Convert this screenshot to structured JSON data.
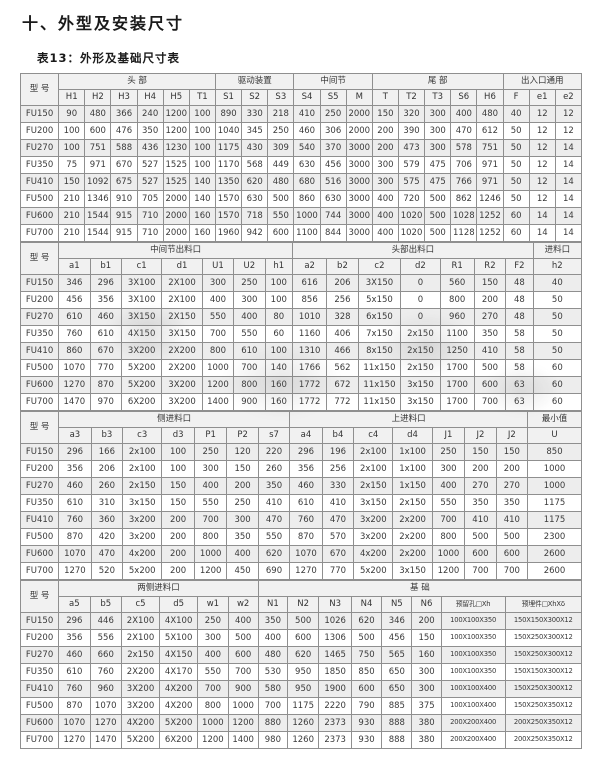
{
  "page_title": "十、外型及安装尺寸",
  "table_title": "表13：外形及基础尺寸表",
  "model_header": "型 号",
  "colors": {
    "border": "#8f8f8f",
    "header_bg": "#f1f1f1",
    "alt_row_bg": "#ededed",
    "text": "#3a3a3a",
    "watermark": "#6e6e6e"
  },
  "sections": [
    {
      "groups": [
        {
          "label": "头    部",
          "span": 6
        },
        {
          "label": "驱动装置",
          "span": 3
        },
        {
          "label": "中间节",
          "span": 3
        },
        {
          "label": "尾  部",
          "span": 5
        },
        {
          "label": "出入口通用",
          "span": 3
        }
      ],
      "columns": [
        "H1",
        "H2",
        "H3",
        "H4",
        "H5",
        "T1",
        "S1",
        "S2",
        "S3",
        "S4",
        "S5",
        "M",
        "T",
        "T2",
        "T3",
        "S6",
        "H6",
        "F",
        "e1",
        "e2"
      ],
      "rows": [
        {
          "model": "FU150",
          "values": [
            "90",
            "480",
            "366",
            "240",
            "1200",
            "100",
            "890",
            "330",
            "218",
            "410",
            "250",
            "2000",
            "150",
            "320",
            "300",
            "400",
            "480",
            "40",
            "12",
            "12"
          ]
        },
        {
          "model": "FU200",
          "values": [
            "100",
            "600",
            "476",
            "350",
            "1200",
            "100",
            "1040",
            "345",
            "250",
            "460",
            "306",
            "2000",
            "200",
            "390",
            "300",
            "470",
            "612",
            "50",
            "12",
            "12"
          ]
        },
        {
          "model": "FU270",
          "values": [
            "100",
            "751",
            "588",
            "436",
            "1230",
            "100",
            "1175",
            "430",
            "309",
            "540",
            "370",
            "3000",
            "200",
            "473",
            "300",
            "578",
            "751",
            "50",
            "12",
            "14"
          ]
        },
        {
          "model": "FU350",
          "values": [
            "75",
            "971",
            "670",
            "527",
            "1525",
            "100",
            "1170",
            "568",
            "449",
            "630",
            "456",
            "3000",
            "300",
            "579",
            "475",
            "706",
            "971",
            "50",
            "12",
            "14"
          ]
        },
        {
          "model": "FU410",
          "values": [
            "150",
            "1092",
            "675",
            "527",
            "1525",
            "140",
            "1350",
            "620",
            "480",
            "680",
            "516",
            "3000",
            "300",
            "575",
            "475",
            "766",
            "971",
            "50",
            "12",
            "14"
          ]
        },
        {
          "model": "FU500",
          "values": [
            "210",
            "1346",
            "910",
            "705",
            "2000",
            "140",
            "1570",
            "630",
            "500",
            "860",
            "630",
            "3000",
            "400",
            "720",
            "500",
            "862",
            "1246",
            "50",
            "12",
            "14"
          ]
        },
        {
          "model": "FU600",
          "values": [
            "210",
            "1544",
            "915",
            "710",
            "2000",
            "160",
            "1570",
            "718",
            "550",
            "1000",
            "744",
            "3000",
            "400",
            "1020",
            "500",
            "1028",
            "1252",
            "60",
            "14",
            "14"
          ]
        },
        {
          "model": "FU700",
          "values": [
            "210",
            "1544",
            "915",
            "710",
            "2000",
            "160",
            "1960",
            "942",
            "600",
            "1100",
            "844",
            "3000",
            "400",
            "1020",
            "500",
            "1128",
            "1252",
            "60",
            "14",
            "14"
          ]
        }
      ]
    },
    {
      "groups": [
        {
          "label": "中间节出料口",
          "span": 7
        },
        {
          "label": "头部出料口",
          "span": 7
        },
        {
          "label": "进料口",
          "span": 1
        }
      ],
      "columns": [
        "a1",
        "b1",
        "c1",
        "d1",
        "U1",
        "U2",
        "h1",
        "a2",
        "b2",
        "c2",
        "d2",
        "R1",
        "R2",
        "F2",
        "h2"
      ],
      "rows": [
        {
          "model": "FU150",
          "values": [
            "346",
            "296",
            "3X100",
            "2X100",
            "300",
            "250",
            "100",
            "616",
            "206",
            "3X150",
            "0",
            "560",
            "150",
            "48",
            "40"
          ]
        },
        {
          "model": "FU200",
          "values": [
            "456",
            "356",
            "3X100",
            "2X100",
            "400",
            "300",
            "100",
            "856",
            "256",
            "5x150",
            "0",
            "800",
            "200",
            "48",
            "50"
          ]
        },
        {
          "model": "FU270",
          "values": [
            "610",
            "460",
            "3X150",
            "2X150",
            "550",
            "400",
            "80",
            "1010",
            "328",
            "6x150",
            "0",
            "960",
            "270",
            "48",
            "50"
          ]
        },
        {
          "model": "FU350",
          "values": [
            "760",
            "610",
            "4X150",
            "3X150",
            "700",
            "550",
            "60",
            "1160",
            "406",
            "7x150",
            "2x150",
            "1100",
            "350",
            "58",
            "50"
          ]
        },
        {
          "model": "FU410",
          "values": [
            "860",
            "670",
            "3X200",
            "2X200",
            "800",
            "610",
            "100",
            "1310",
            "466",
            "8x150",
            "2x150",
            "1250",
            "410",
            "58",
            "50"
          ]
        },
        {
          "model": "FU500",
          "values": [
            "1070",
            "770",
            "5X200",
            "2X200",
            "1000",
            "700",
            "140",
            "1766",
            "562",
            "11x150",
            "2x150",
            "1700",
            "500",
            "58",
            "60"
          ]
        },
        {
          "model": "FU600",
          "values": [
            "1270",
            "870",
            "5X200",
            "3X200",
            "1200",
            "800",
            "160",
            "1772",
            "672",
            "11x150",
            "3x150",
            "1700",
            "600",
            "63",
            "60"
          ]
        },
        {
          "model": "FU700",
          "values": [
            "1470",
            "970",
            "6X200",
            "3X200",
            "1400",
            "900",
            "160",
            "1772",
            "772",
            "11x150",
            "3x150",
            "1700",
            "700",
            "63",
            "60"
          ]
        }
      ]
    },
    {
      "groups": [
        {
          "label": "侧进料口",
          "span": 7
        },
        {
          "label": "上进料口",
          "span": 7
        },
        {
          "label": "最小值",
          "span": 1
        }
      ],
      "columns": [
        "a3",
        "b3",
        "c3",
        "d3",
        "P1",
        "P2",
        "s7",
        "a4",
        "b4",
        "c4",
        "d4",
        "J1",
        "J2",
        "J2",
        "U"
      ],
      "rows": [
        {
          "model": "FU150",
          "values": [
            "296",
            "166",
            "2x100",
            "100",
            "250",
            "120",
            "220",
            "296",
            "196",
            "2x100",
            "1x100",
            "250",
            "150",
            "150",
            "850"
          ]
        },
        {
          "model": "FU200",
          "values": [
            "356",
            "206",
            "2x100",
            "100",
            "300",
            "150",
            "260",
            "356",
            "256",
            "2x100",
            "1x100",
            "300",
            "200",
            "200",
            "1000"
          ]
        },
        {
          "model": "FU270",
          "values": [
            "460",
            "260",
            "2x150",
            "150",
            "400",
            "200",
            "350",
            "460",
            "330",
            "2x150",
            "1x150",
            "400",
            "270",
            "270",
            "1000"
          ]
        },
        {
          "model": "FU350",
          "values": [
            "610",
            "310",
            "3x150",
            "150",
            "550",
            "250",
            "410",
            "610",
            "410",
            "3x150",
            "2x150",
            "550",
            "350",
            "350",
            "1175"
          ]
        },
        {
          "model": "FU410",
          "values": [
            "760",
            "360",
            "3x200",
            "200",
            "700",
            "300",
            "470",
            "760",
            "470",
            "3x200",
            "2x200",
            "700",
            "410",
            "410",
            "1175"
          ]
        },
        {
          "model": "FU500",
          "values": [
            "870",
            "420",
            "3x200",
            "200",
            "800",
            "350",
            "550",
            "870",
            "570",
            "3x200",
            "2x200",
            "800",
            "500",
            "500",
            "2300"
          ]
        },
        {
          "model": "FU600",
          "values": [
            "1070",
            "470",
            "4x200",
            "200",
            "1000",
            "400",
            "620",
            "1070",
            "670",
            "4x200",
            "2x200",
            "1000",
            "600",
            "600",
            "2600"
          ]
        },
        {
          "model": "FU700",
          "values": [
            "1270",
            "520",
            "5x200",
            "200",
            "1200",
            "450",
            "690",
            "1270",
            "770",
            "5x200",
            "3x150",
            "1200",
            "700",
            "700",
            "2600"
          ]
        }
      ]
    },
    {
      "groups": [
        {
          "label": "两侧进料口",
          "span": 6
        },
        {
          "label": "基    础",
          "span": 8
        }
      ],
      "columns": [
        "a5",
        "b5",
        "c5",
        "d5",
        "w1",
        "w2",
        "N1",
        "N2",
        "N3",
        "N4",
        "N5",
        "N6",
        "预留孔□Xh",
        "预埋件□XhXδ"
      ],
      "rows": [
        {
          "model": "FU150",
          "values": [
            "296",
            "446",
            "2X100",
            "4X100",
            "250",
            "400",
            "350",
            "500",
            "1026",
            "620",
            "346",
            "200",
            "100X100X350",
            "150X150X300X12"
          ]
        },
        {
          "model": "FU200",
          "values": [
            "356",
            "556",
            "2X100",
            "5X100",
            "300",
            "500",
            "400",
            "600",
            "1306",
            "500",
            "456",
            "150",
            "100X100X350",
            "150X250X300X12"
          ]
        },
        {
          "model": "FU270",
          "values": [
            "460",
            "660",
            "2x150",
            "4X150",
            "400",
            "600",
            "480",
            "620",
            "1465",
            "750",
            "565",
            "160",
            "100X100X350",
            "150X250X300X12"
          ]
        },
        {
          "model": "FU350",
          "values": [
            "610",
            "760",
            "2X200",
            "4X170",
            "550",
            "700",
            "530",
            "950",
            "1850",
            "850",
            "650",
            "300",
            "100X100X350",
            "150X150X300X12"
          ]
        },
        {
          "model": "FU410",
          "values": [
            "760",
            "960",
            "3X200",
            "4X200",
            "700",
            "900",
            "580",
            "950",
            "1900",
            "600",
            "650",
            "300",
            "100X100X400",
            "150X250X300X12"
          ]
        },
        {
          "model": "FU500",
          "values": [
            "870",
            "1070",
            "3X200",
            "4X200",
            "800",
            "1000",
            "700",
            "1175",
            "2220",
            "790",
            "885",
            "375",
            "100X100X400",
            "150X250X350X12"
          ]
        },
        {
          "model": "FU600",
          "values": [
            "1070",
            "1270",
            "4X200",
            "5X200",
            "1000",
            "1200",
            "880",
            "1260",
            "2373",
            "930",
            "888",
            "380",
            "200X200X400",
            "200X250X350X12"
          ]
        },
        {
          "model": "FU700",
          "values": [
            "1270",
            "1470",
            "5X200",
            "6X200",
            "1200",
            "1400",
            "980",
            "1260",
            "2373",
            "930",
            "888",
            "380",
            "200X200X400",
            "200X250X350X12"
          ]
        }
      ]
    }
  ]
}
